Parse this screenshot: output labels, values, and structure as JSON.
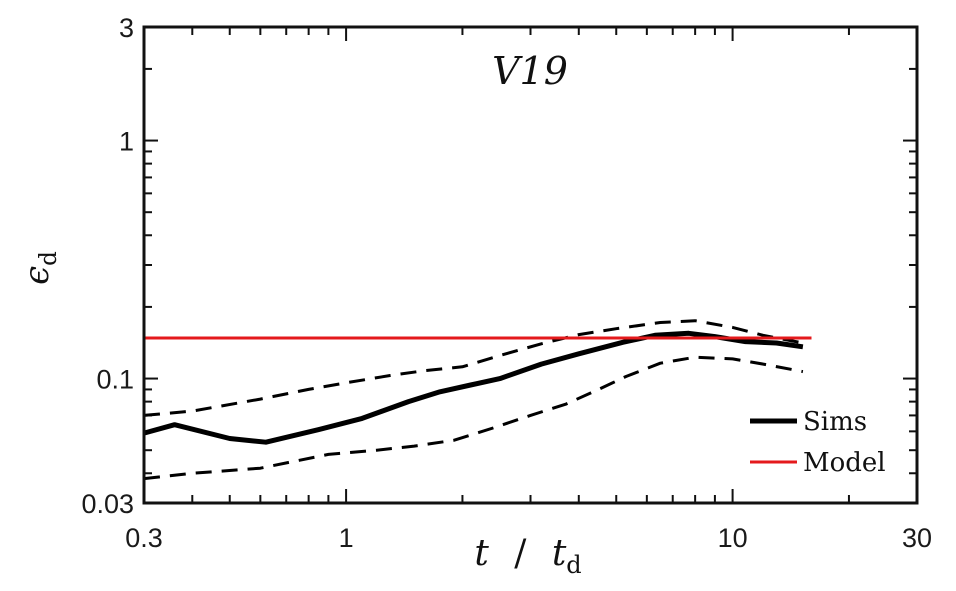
{
  "chart_data": {
    "type": "line",
    "title": "V19",
    "xlabel": {
      "var": "t",
      "sep": "/",
      "denom": "t",
      "denom_sub": "d"
    },
    "ylabel": {
      "var": "ϵ",
      "sub": "d"
    },
    "xscale": "log",
    "yscale": "log",
    "xlim": [
      0.3,
      30
    ],
    "ylim": [
      0.03,
      3
    ],
    "xticks": [
      {
        "value": 0.3,
        "label": "0.3"
      },
      {
        "value": 1,
        "label": "1"
      },
      {
        "value": 10,
        "label": "10"
      },
      {
        "value": 30,
        "label": "30"
      }
    ],
    "yticks": [
      {
        "value": 0.03,
        "label": "0.03"
      },
      {
        "value": 0.1,
        "label": "0.1"
      },
      {
        "value": 1,
        "label": "1"
      },
      {
        "value": 3,
        "label": "3"
      }
    ],
    "legend_position": "bottom-right",
    "series": [
      {
        "name": "Sims",
        "style": "solid",
        "color": "#000000",
        "legend": true,
        "x": [
          0.3,
          0.36,
          0.5,
          0.62,
          0.85,
          1.1,
          1.45,
          1.75,
          2.1,
          2.5,
          3.2,
          4.0,
          5.2,
          6.3,
          7.7,
          9.0,
          10.8,
          13.0,
          15.2
        ],
        "y": [
          0.059,
          0.064,
          0.056,
          0.054,
          0.061,
          0.068,
          0.08,
          0.088,
          0.094,
          0.1,
          0.115,
          0.127,
          0.142,
          0.152,
          0.155,
          0.15,
          0.143,
          0.141,
          0.136
        ]
      },
      {
        "name": "Model",
        "style": "solid",
        "color": "#e41a1c",
        "legend": true,
        "x": [
          0.3,
          16
        ],
        "y": [
          0.148,
          0.148
        ]
      },
      {
        "style": "dashed",
        "color": "#000000",
        "legend": false,
        "x": [
          0.3,
          0.4,
          0.6,
          0.8,
          1.0,
          1.3,
          1.6,
          2.0,
          2.5,
          3.2,
          4.0,
          5.0,
          6.5,
          8.0,
          10.0,
          12.0,
          15.2
        ],
        "y": [
          0.07,
          0.073,
          0.082,
          0.09,
          0.096,
          0.103,
          0.108,
          0.112,
          0.125,
          0.14,
          0.153,
          0.162,
          0.172,
          0.175,
          0.164,
          0.152,
          0.141
        ]
      },
      {
        "style": "dashed",
        "color": "#000000",
        "legend": false,
        "x": [
          0.3,
          0.4,
          0.6,
          0.9,
          1.2,
          1.5,
          1.9,
          2.4,
          3.0,
          3.7,
          4.5,
          5.3,
          6.5,
          8.0,
          10.0,
          12.0,
          15.2
        ],
        "y": [
          0.038,
          0.04,
          0.042,
          0.048,
          0.05,
          0.052,
          0.055,
          0.062,
          0.07,
          0.078,
          0.09,
          0.102,
          0.116,
          0.123,
          0.121,
          0.115,
          0.107
        ]
      }
    ],
    "legend": [
      {
        "label": "Sims",
        "color": "#000000",
        "line_width": 5
      },
      {
        "label": "Model",
        "color": "#e41a1c",
        "line_width": 3
      }
    ]
  }
}
